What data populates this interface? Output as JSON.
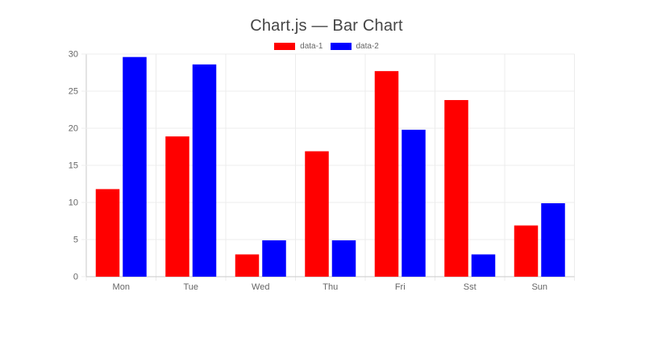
{
  "chart_data": {
    "type": "bar",
    "title": "Chart.js — Bar Chart",
    "categories": [
      "Mon",
      "Tue",
      "Wed",
      "Thu",
      "Fri",
      "Sst",
      "Sun"
    ],
    "series": [
      {
        "name": "data-1",
        "color": "#ff0000",
        "values": [
          11.8,
          18.9,
          3.0,
          16.9,
          27.7,
          23.8,
          6.9
        ]
      },
      {
        "name": "data-2",
        "color": "#0000ff",
        "values": [
          29.6,
          28.6,
          4.9,
          4.9,
          19.8,
          3.0,
          9.9
        ]
      }
    ],
    "xlabel": "",
    "ylabel": "",
    "ylim": [
      0,
      30
    ],
    "yticks": [
      0,
      5,
      10,
      15,
      20,
      25,
      30
    ],
    "grid": true,
    "legend_position": "top",
    "colors": {
      "grid": "#ececec",
      "axis": "#c9c9c9",
      "tick_label": "#666666",
      "title": "#454545",
      "background": "#ffffff"
    }
  }
}
